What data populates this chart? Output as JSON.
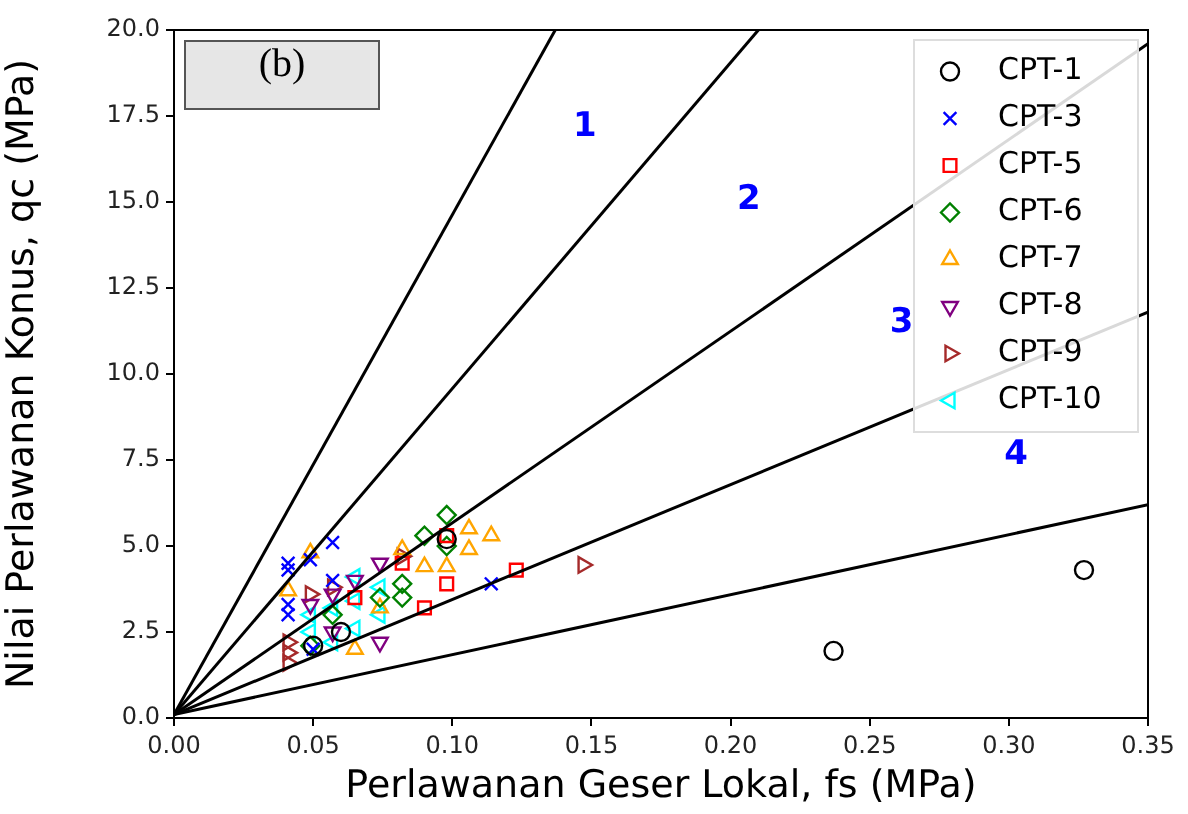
{
  "chart_data": {
    "type": "scatter",
    "xlabel": "Perlawanan Geser Lokal, fs (MPa)",
    "ylabel": "Nilai Perlawanan Konus, qc (MPa)",
    "xlim": [
      0,
      0.35
    ],
    "xticks": [
      {
        "value": 0,
        "label": "0.00"
      },
      {
        "value": 0.05,
        "label": "0.05"
      },
      {
        "value": 0.1,
        "label": "0.10"
      },
      {
        "value": 0.15,
        "label": "0.15"
      },
      {
        "value": 0.2,
        "label": "0.20"
      },
      {
        "value": 0.25,
        "label": "0.25"
      },
      {
        "value": 0.3,
        "label": "0.30"
      },
      {
        "value": 0.35,
        "label": "0.35"
      }
    ],
    "ylim": [
      0,
      20
    ],
    "yticks": [
      {
        "value": 0,
        "label": "0.0"
      },
      {
        "value": 2.5,
        "label": "2.5"
      },
      {
        "value": 5,
        "label": "5.0"
      },
      {
        "value": 7.5,
        "label": "7.5"
      },
      {
        "value": 10,
        "label": "10.0"
      },
      {
        "value": 12.5,
        "label": "12.5"
      },
      {
        "value": 15,
        "label": "15.0"
      },
      {
        "value": 17.5,
        "label": "17.5"
      },
      {
        "value": 20,
        "label": "20.0"
      }
    ],
    "grid": false,
    "legend": "top right",
    "annotations": [
      "(b)",
      "1",
      "2",
      "3",
      "4"
    ],
    "series": [
      {
        "type": "line",
        "color": "#000000",
        "marker": "none",
        "x": [
          0,
          0.137
        ],
        "values": [
          0.1,
          20
        ]
      },
      {
        "type": "line",
        "color": "#000000",
        "marker": "none",
        "x": [
          0,
          0.21
        ],
        "values": [
          0.1,
          20
        ]
      },
      {
        "type": "line",
        "color": "#000000",
        "marker": "none",
        "x": [
          0,
          0.35
        ],
        "values": [
          0.1,
          19.6
        ]
      },
      {
        "type": "line",
        "color": "#000000",
        "marker": "none",
        "x": [
          0,
          0.35
        ],
        "values": [
          0.1,
          11.8
        ]
      },
      {
        "type": "line",
        "color": "#000000",
        "marker": "none",
        "x": [
          0,
          0.35
        ],
        "values": [
          0.1,
          6.2
        ]
      },
      {
        "name": "CPT-1",
        "color": "#000000",
        "marker": "circle",
        "x": [
          0.237,
          0.327,
          0.05,
          0.06,
          0.098
        ],
        "values": [
          1.95,
          4.3,
          2.1,
          2.5,
          5.2
        ]
      },
      {
        "name": "CPT-3",
        "color": "#0000ff",
        "marker": "cross",
        "x": [
          0.041,
          0.041,
          0.041,
          0.041,
          0.049,
          0.057,
          0.057,
          0.114,
          0.05
        ],
        "values": [
          4.5,
          4.3,
          3.0,
          3.3,
          4.6,
          5.1,
          4.0,
          3.9,
          2.0
        ]
      },
      {
        "name": "CPT-5",
        "color": "#ff0000",
        "marker": "square",
        "x": [
          0.09,
          0.098,
          0.098,
          0.123,
          0.082,
          0.065
        ],
        "values": [
          3.2,
          3.9,
          5.3,
          4.3,
          4.5,
          3.5
        ]
      },
      {
        "name": "CPT-6",
        "color": "#008000",
        "marker": "diamond",
        "x": [
          0.098,
          0.098,
          0.09,
          0.082,
          0.082,
          0.074,
          0.049,
          0.057
        ],
        "values": [
          5.9,
          5.0,
          5.3,
          3.5,
          3.9,
          3.5,
          2.1,
          3.0
        ]
      },
      {
        "name": "CPT-7",
        "color": "#ffa500",
        "marker": "triangle",
        "x": [
          0.106,
          0.106,
          0.114,
          0.098,
          0.09,
          0.082,
          0.074,
          0.065,
          0.049,
          0.041
        ],
        "values": [
          5.5,
          4.9,
          5.3,
          4.4,
          4.4,
          4.9,
          3.2,
          2.0,
          4.8,
          3.7
        ]
      },
      {
        "name": "CPT-8",
        "color": "#800080",
        "marker": "triangle-down",
        "x": [
          0.074,
          0.074,
          0.057,
          0.057,
          0.049,
          0.065
        ],
        "values": [
          2.2,
          4.5,
          2.5,
          3.6,
          3.3,
          4.0
        ]
      },
      {
        "name": "CPT-9",
        "color": "#a52a2a",
        "marker": "triangle-right",
        "x": [
          0.147,
          0.041,
          0.041,
          0.041,
          0.049,
          0.057,
          0.082
        ],
        "values": [
          4.45,
          1.6,
          1.9,
          2.2,
          3.6,
          3.8,
          4.7
        ]
      },
      {
        "name": "CPT-10",
        "color": "#00ffff",
        "marker": "triangle-left",
        "x": [
          0.049,
          0.049,
          0.057,
          0.057,
          0.065,
          0.065,
          0.065,
          0.074,
          0.074
        ],
        "values": [
          3.0,
          2.5,
          2.2,
          3.2,
          2.6,
          3.4,
          4.1,
          3.0,
          3.8
        ]
      }
    ]
  }
}
